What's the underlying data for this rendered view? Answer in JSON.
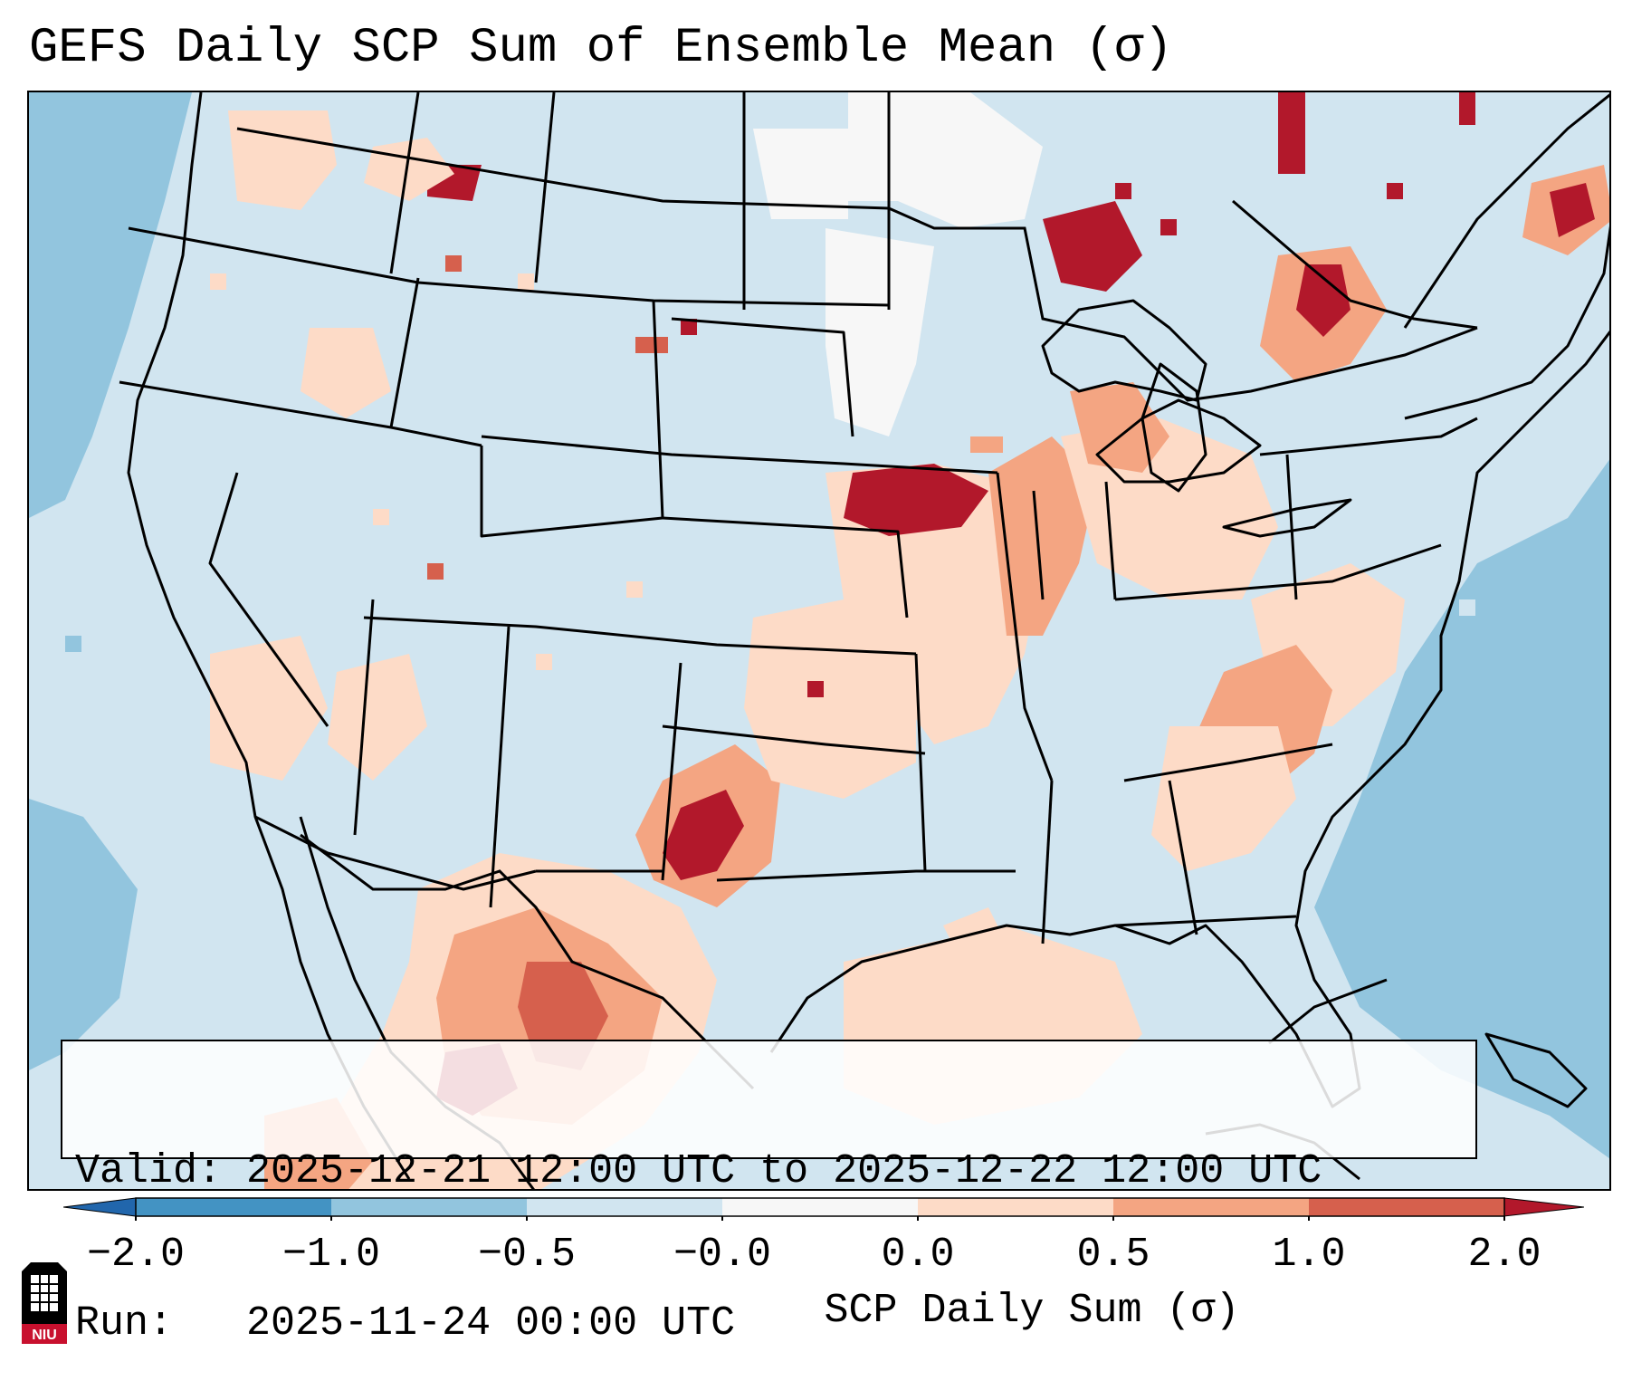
{
  "title": "GEFS Daily SCP Sum of Ensemble Mean (σ)",
  "info": {
    "valid": "Valid: 2025-12-21 12:00 UTC to 2025-12-22 12:00 UTC",
    "run": "Run:   2025-11-24 00:00 UTC"
  },
  "colorbar": {
    "label": "SCP Daily Sum (σ)",
    "ticks": [
      "−2.0",
      "−1.0",
      "−0.5",
      "−0.0",
      "0.0",
      "0.5",
      "1.0",
      "2.0"
    ],
    "colors": {
      "lt_-2": "#2166ac",
      "-2_-1": "#4393c3",
      "-1_-0.5": "#92c5de",
      "-0.5_0": "#d1e5f0",
      "0_0": "#f7f7f7",
      "0_0.5": "#fddbc7",
      "0.5_1": "#f4a582",
      "1_2": "#d6604d",
      "gt_2": "#b2182b"
    }
  },
  "logo": {
    "text": "NIU",
    "icon": "niu-tower-logo-icon"
  },
  "map": {
    "projection": "CONUS Lambert conformal",
    "background_color": "#d1e5f0",
    "features": [
      "state-borders",
      "coastlines",
      "country-borders"
    ]
  }
}
